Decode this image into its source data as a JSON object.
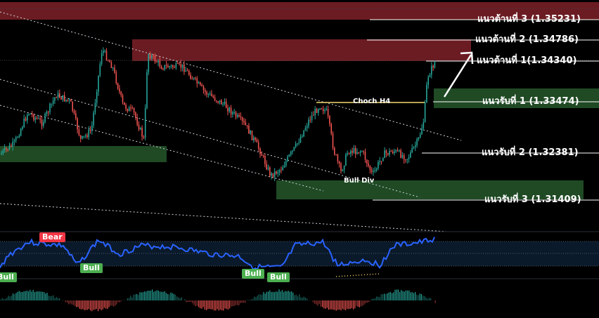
{
  "levels": {
    "resistance": [
      {
        "label": "แนวต้านที่ 3 (1.35231)"
      },
      {
        "label": "แนวต้านที่ 2 (1.34786)"
      },
      {
        "label": "แนวต้านที่ 1(1.34340)"
      }
    ],
    "support": [
      {
        "label": "แนวรับที่ 1 (1.33474)"
      },
      {
        "label": "แนวรับที่ 2 (1.32381)"
      },
      {
        "label": "แนวรับที่ 3 (1.31409)"
      }
    ]
  },
  "annotations": {
    "choch": "Choch H4",
    "bull_div": "Bull Div"
  },
  "indicator": {
    "bear_tag": "Bear",
    "bull_tags": [
      "Bull",
      "Bull",
      "Bull",
      "Bull"
    ]
  },
  "colors": {
    "resistance_zone": "#6b1c22",
    "support_zone": "#1f4a24",
    "up_candle": "#26a69a",
    "down_candle": "#ef5350",
    "rsi_line": "#2962ff",
    "bear_tag": "#f23645",
    "bull_tag": "#4caf50"
  }
}
